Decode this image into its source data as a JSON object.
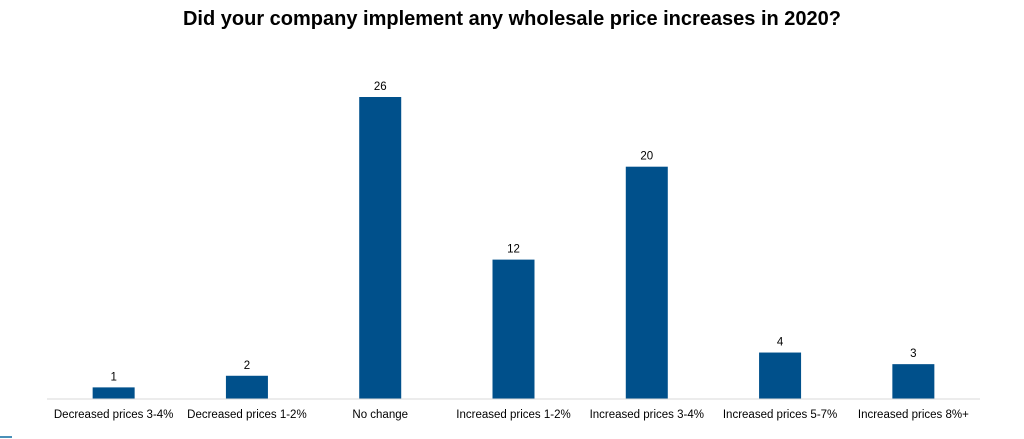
{
  "chart_data": {
    "type": "bar",
    "title": "Did your company implement any wholesale price increases in 2020?",
    "categories": [
      "Decreased prices 3-4%",
      "Decreased prices 1-2%",
      "No change",
      "Increased prices 1-2%",
      "Increased prices 3-4%",
      "Increased prices 5-7%",
      "Increased prices 8%+"
    ],
    "values": [
      1,
      2,
      26,
      12,
      20,
      4,
      3
    ],
    "data_labels": [
      "1",
      "2",
      "26",
      "12",
      "20",
      "4",
      "3"
    ],
    "xlabel": "",
    "ylabel": "",
    "ylim": [
      0,
      26
    ],
    "grid": false,
    "legend": "none",
    "bar_color": "#00508b"
  }
}
